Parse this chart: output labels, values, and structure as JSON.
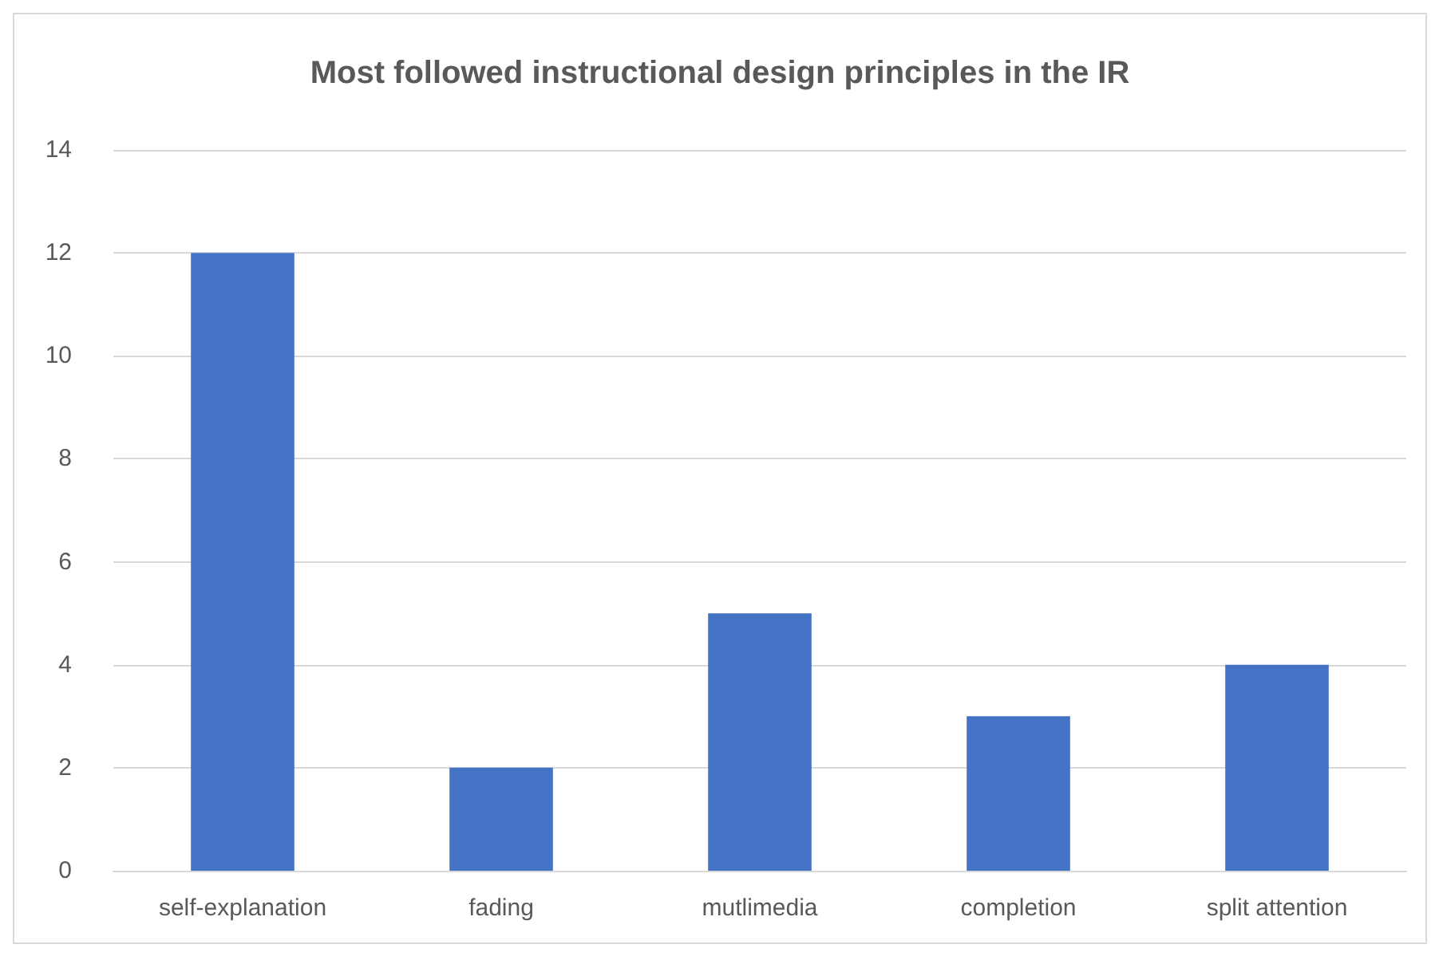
{
  "chart_data": {
    "type": "bar",
    "title": "Most followed instructional design principles in the IR",
    "categories": [
      "self-explanation",
      "fading",
      "mutlimedia",
      "completion",
      "split attention"
    ],
    "values": [
      12,
      2,
      5,
      3,
      4
    ],
    "color": "#4472c4",
    "ylim": [
      0,
      14
    ],
    "yticks": [
      0,
      2,
      4,
      6,
      8,
      10,
      12,
      14
    ],
    "grid": "y"
  }
}
